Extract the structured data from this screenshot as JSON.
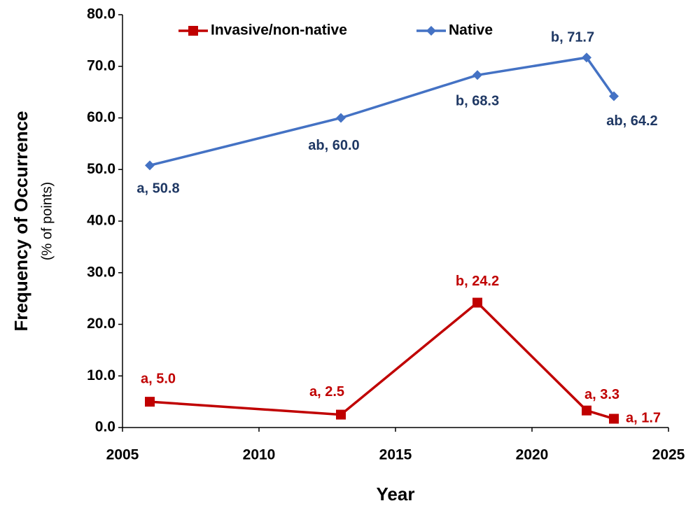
{
  "chart_data": {
    "type": "line",
    "ylabel": "Frequency of Occurrence",
    "ylabel_sub": "(% of points)",
    "xlabel": "Year",
    "x": [
      2006,
      2013,
      2018,
      2022,
      2023
    ],
    "series": [
      {
        "name": "Invasive/non-native",
        "color": "#c00000",
        "label_color": "#c00000",
        "marker": "square",
        "values": [
          5.0,
          2.5,
          24.2,
          3.3,
          1.7
        ],
        "value_labels": [
          "a, 5.0",
          "a, 2.5",
          "b, 24.2",
          "a, 3.3",
          "a, 1.7"
        ]
      },
      {
        "name": "Native",
        "color": "#4472c4",
        "label_color": "#1f3864",
        "marker": "diamond",
        "values": [
          50.8,
          60.0,
          68.3,
          71.7,
          64.2
        ],
        "value_labels": [
          "a, 50.8",
          "ab, 60.0",
          "b, 68.3",
          "b, 71.7",
          "ab, 64.2"
        ]
      }
    ],
    "xlim": [
      2005,
      2025
    ],
    "xticks": [
      2005,
      2010,
      2015,
      2020,
      2025
    ],
    "ylim": [
      0,
      80
    ],
    "yticks": [
      {
        "value": 0,
        "label": "0.0"
      },
      {
        "value": 10,
        "label": "10.0"
      },
      {
        "value": 20,
        "label": "20.0"
      },
      {
        "value": 30,
        "label": "30.0"
      },
      {
        "value": 40,
        "label": "40.0"
      },
      {
        "value": 50,
        "label": "50.0"
      },
      {
        "value": 60,
        "label": "60.0"
      },
      {
        "value": 70,
        "label": "70.0"
      },
      {
        "value": 80,
        "label": "80.0"
      }
    ],
    "grid": false
  }
}
